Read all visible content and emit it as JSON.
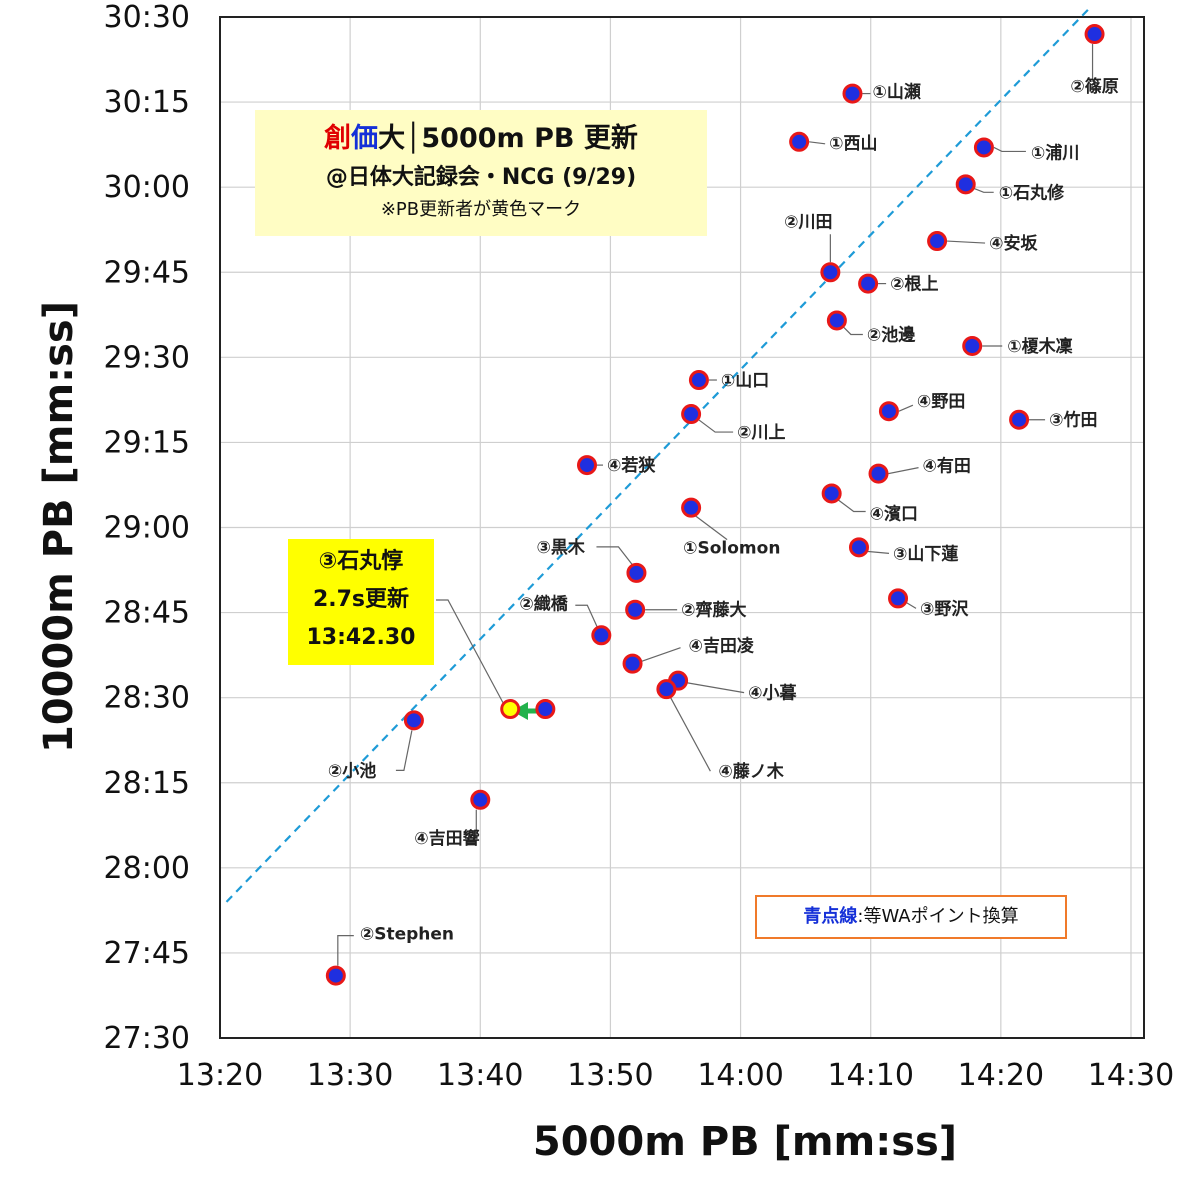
{
  "chart_data": {
    "type": "scatter",
    "xlabel": "5000m PB [mm:ss]",
    "ylabel": "10000m PB [mm:ss]",
    "x_ticks": [
      "13:20",
      "13:30",
      "13:40",
      "13:50",
      "14:00",
      "14:10",
      "14:20",
      "14:30"
    ],
    "y_ticks": [
      "27:30",
      "27:45",
      "28:00",
      "28:15",
      "28:30",
      "28:45",
      "29:00",
      "29:15",
      "29:30",
      "29:45",
      "30:00",
      "30:15",
      "30:30"
    ],
    "xlim": [
      "13:20",
      "14:31"
    ],
    "ylim": [
      "27:30",
      "30:30"
    ],
    "grid": true,
    "marker_colors": {
      "fill": "#1f2fe0",
      "edge": "#e81818",
      "highlight_fill": "#ffff00"
    },
    "equivalence_line": {
      "label": "青点線",
      "color": "#1e9bd7",
      "from": [
        "13:20.5",
        "27:54"
      ],
      "to": [
        "14:27",
        "30:32"
      ]
    },
    "points": [
      {
        "label": "②篠原",
        "x": "14:27.2",
        "y": "30:27.0"
      },
      {
        "label": "①山瀬",
        "x": "14:08.6",
        "y": "30:16.5"
      },
      {
        "label": "①西山",
        "x": "14:04.5",
        "y": "30:08.0"
      },
      {
        "label": "①浦川",
        "x": "14:18.7",
        "y": "30:07.0"
      },
      {
        "label": "①石丸修",
        "x": "14:17.3",
        "y": "30:00.5"
      },
      {
        "label": "②川田",
        "x": "14:06.9",
        "y": "29:45.0"
      },
      {
        "label": "④安坂",
        "x": "14:15.1",
        "y": "29:50.5"
      },
      {
        "label": "②根上",
        "x": "14:09.8",
        "y": "29:43.0"
      },
      {
        "label": "②池邊",
        "x": "14:07.4",
        "y": "29:36.5"
      },
      {
        "label": "①榎木凜",
        "x": "14:17.8",
        "y": "29:32.0"
      },
      {
        "label": "①山口",
        "x": "13:56.8",
        "y": "29:26.0"
      },
      {
        "label": "②川上",
        "x": "13:56.2",
        "y": "29:20.0"
      },
      {
        "label": "④野田",
        "x": "14:11.4",
        "y": "29:20.5"
      },
      {
        "label": "③竹田",
        "x": "14:21.4",
        "y": "29:19.0"
      },
      {
        "label": "④若狭",
        "x": "13:48.2",
        "y": "29:11.0"
      },
      {
        "label": "④有田",
        "x": "14:10.6",
        "y": "29:09.5"
      },
      {
        "label": "④濱口",
        "x": "14:07.0",
        "y": "29:06.0"
      },
      {
        "label": "①Solomon",
        "x": "13:56.2",
        "y": "29:03.5"
      },
      {
        "label": "③山下蓮",
        "x": "14:09.1",
        "y": "28:56.5"
      },
      {
        "label": "③黒木",
        "x": "13:52.0",
        "y": "28:52.0"
      },
      {
        "label": "③野沢",
        "x": "14:12.1",
        "y": "28:47.5"
      },
      {
        "label": "②齊藤大",
        "x": "13:51.9",
        "y": "28:45.5"
      },
      {
        "label": "②織橋",
        "x": "13:49.3",
        "y": "28:41.0"
      },
      {
        "label": "④吉田凌",
        "x": "13:51.7",
        "y": "28:36.0"
      },
      {
        "label": "④小暮",
        "x": "13:55.2",
        "y": "28:33.0"
      },
      {
        "label": "④藤ノ木",
        "x": "13:54.3",
        "y": "28:31.5"
      },
      {
        "label": "③石丸惇",
        "x": "13:42.3",
        "y": "28:28.0",
        "highlight": true
      },
      {
        "label": "",
        "x": "13:45.0",
        "y": "28:28.0"
      },
      {
        "label": "②小池",
        "x": "13:34.9",
        "y": "28:26.0"
      },
      {
        "label": "④吉田響",
        "x": "13:40.0",
        "y": "28:12.0"
      },
      {
        "label": "②Stephen",
        "x": "13:28.9",
        "y": "27:41.0"
      }
    ]
  },
  "title_box": {
    "line1_a": "創",
    "line1_b": "価",
    "line1_c": "大│5000m PB 更新",
    "line2": "@日体大記録会・NCG (9/29)",
    "line3": "※PB更新者が黄色マーク"
  },
  "callout": {
    "line1": "③石丸惇",
    "line2": "2.7s更新",
    "line3": "13:42.30"
  },
  "legend": {
    "keyword": "青点線",
    "text": ":等WAポイント換算"
  }
}
